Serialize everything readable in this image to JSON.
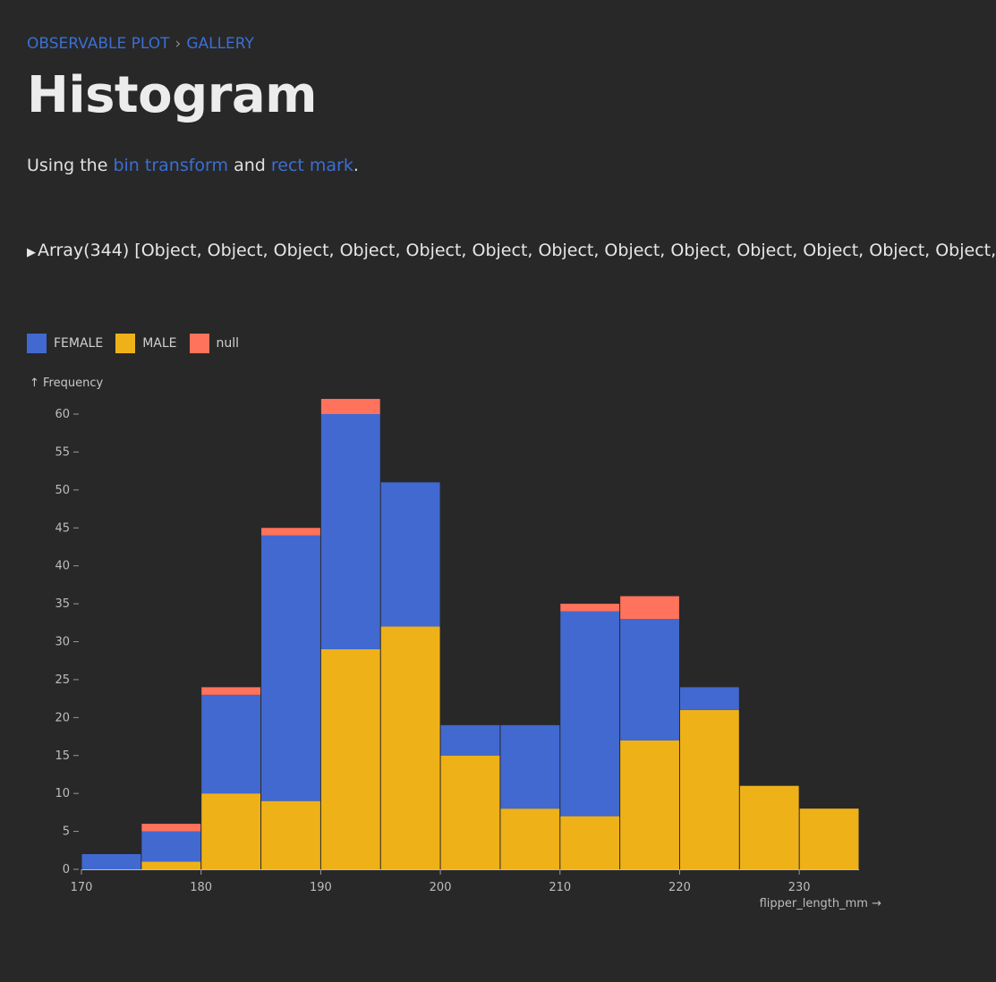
{
  "breadcrumb": {
    "root": "OBSERVABLE PLOT",
    "separator": "›",
    "current": "GALLERY"
  },
  "title": "Histogram",
  "intro": {
    "prefix": "Using the ",
    "link1": "bin transform",
    "middle": " and ",
    "link2": "rect mark",
    "suffix": "."
  },
  "inspector": {
    "text": "Array(344) [Object, Object, Object, Object, Object, Object, Object, Object, Object, Object, Object, Object, Object,"
  },
  "legend": [
    {
      "label": "FEMALE",
      "color": "#4269d0"
    },
    {
      "label": "MALE",
      "color": "#efb118"
    },
    {
      "label": "null",
      "color": "#ff725c"
    }
  ],
  "chart_data": {
    "type": "bar",
    "stacked": true,
    "ylabel": "↑ Frequency",
    "xlabel": "flipper_length_mm →",
    "ylim": [
      0,
      60
    ],
    "yticks": [
      0,
      5,
      10,
      15,
      20,
      25,
      30,
      35,
      40,
      45,
      50,
      55,
      60
    ],
    "xticks": [
      170,
      180,
      190,
      200,
      210,
      220,
      230
    ],
    "bins": [
      [
        170,
        175
      ],
      [
        175,
        180
      ],
      [
        180,
        185
      ],
      [
        185,
        190
      ],
      [
        190,
        195
      ],
      [
        195,
        200
      ],
      [
        200,
        205
      ],
      [
        205,
        210
      ],
      [
        210,
        215
      ],
      [
        215,
        220
      ],
      [
        220,
        225
      ],
      [
        225,
        230
      ],
      [
        230,
        235
      ]
    ],
    "series": [
      {
        "name": "MALE",
        "color": "#efb118",
        "values": [
          0,
          1,
          10,
          9,
          29,
          32,
          15,
          8,
          7,
          17,
          21,
          11,
          8
        ]
      },
      {
        "name": "FEMALE",
        "color": "#4269d0",
        "values": [
          2,
          4,
          13,
          35,
          31,
          19,
          4,
          11,
          27,
          16,
          3,
          0,
          0
        ]
      },
      {
        "name": "null",
        "color": "#ff725c",
        "values": [
          0,
          1,
          1,
          1,
          2,
          0,
          0,
          0,
          1,
          3,
          0,
          0,
          0
        ]
      }
    ]
  }
}
